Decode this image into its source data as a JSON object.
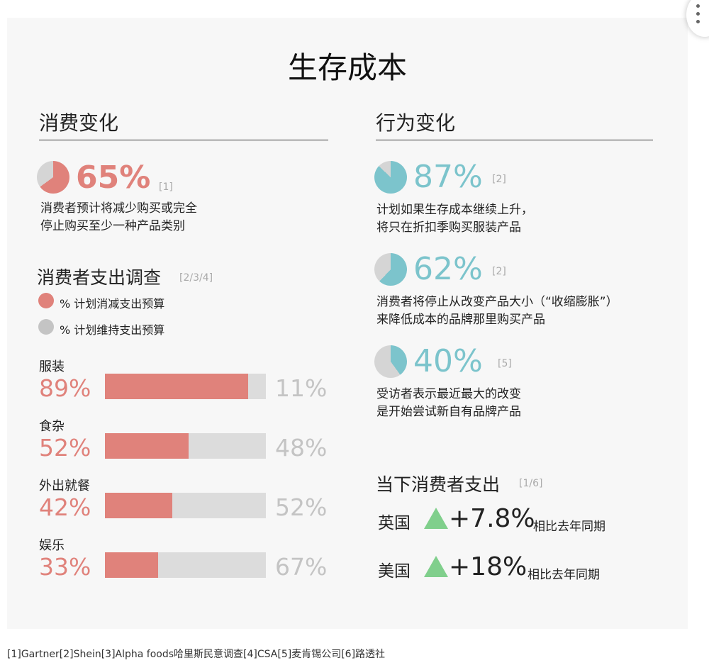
{
  "title": "生存成本",
  "colors": {
    "red": "#e0827b",
    "teal": "#7cc4cc",
    "gray": "#d5d5d5",
    "green": "#80cf8c"
  },
  "left": {
    "heading": "消费变化",
    "stat": {
      "value": 65,
      "label": "65%",
      "ref": "[1]",
      "desc": [
        "消费者预计将减少购买或完全",
        "停止购买至少一种产品类别"
      ]
    },
    "survey_heading": "消费者支出调查",
    "survey_ref": "[2/3/4]",
    "legend": [
      "% 计划消减支出预算",
      "% 计划维持支出预算"
    ]
  },
  "chart_data": {
    "type": "bar",
    "categories": [
      "服装",
      "食杂",
      "外出就餐",
      "娱乐"
    ],
    "series": [
      {
        "name": "% 计划消减支出预算",
        "values": [
          89,
          52,
          42,
          33
        ],
        "labels": [
          "89%",
          "52%",
          "42%",
          "33%"
        ]
      },
      {
        "name": "% 计划维持支出预算",
        "values": [
          11,
          48,
          52,
          67
        ],
        "labels": [
          "11%",
          "48%",
          "52%",
          "67%"
        ]
      }
    ]
  },
  "right": {
    "heading": "行为变化",
    "stats": [
      {
        "value": 87,
        "label": "87%",
        "ref": "[2]",
        "desc": [
          "计划如果生存成本继续上升，",
          "将只在折扣季购买服装产品"
        ]
      },
      {
        "value": 62,
        "label": "62%",
        "ref": "[2]",
        "desc": [
          "消费者将停止从改变产品大小（“收缩膨胀”）",
          "来降低成本的品牌那里购买产品"
        ]
      },
      {
        "value": 40,
        "label": "40%",
        "ref": "[5]",
        "desc": [
          "受访者表示最近最大的改变",
          "是开始尝试新自有品牌产品"
        ]
      }
    ],
    "spend_heading": "当下消费者支出",
    "spend_ref": "[1/6]",
    "spend": [
      {
        "country": "英国",
        "change": "+7.8%",
        "note": "相比去年同期"
      },
      {
        "country": "美国",
        "change": "+18%",
        "note": "相比去年同期"
      }
    ]
  },
  "footnote": "[1]Gartner[2]Shein[3]Alpha foods哈里斯民意调查[4]CSA[5]麦肯锡公司[6]路透社"
}
